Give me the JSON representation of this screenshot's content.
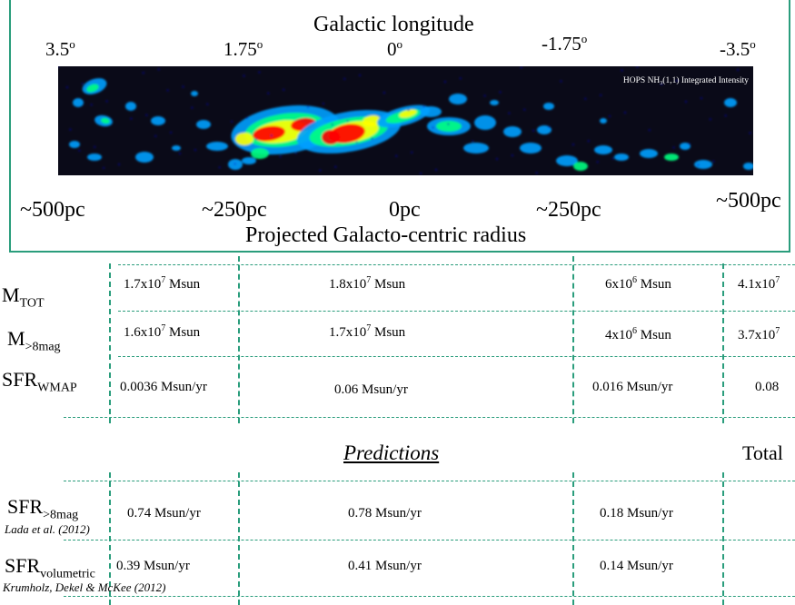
{
  "header": {
    "title": "Galactic longitude",
    "longitudes": [
      "3.5",
      "1.75",
      "0",
      "-1.75",
      "-3.5"
    ],
    "degree_mark": "o"
  },
  "map": {
    "label_prefix": "HOPS NH",
    "label_sub": "3",
    "label_suffix": "(1,1) Integrated Intensity",
    "background": "#0a0a18",
    "colors": [
      "#0000cc",
      "#00a0ff",
      "#00ff80",
      "#ffff00",
      "#ff0000"
    ]
  },
  "radius": {
    "labels": [
      "~500pc",
      "~250pc",
      "0pc",
      "~250pc",
      "~500pc"
    ],
    "title": "Projected Galacto-centric radius"
  },
  "table": {
    "rows": [
      {
        "label": "M",
        "label_sub": "TOT",
        "cells": [
          {
            "m": "1.7x10",
            "e": "7",
            "u": " Msun"
          },
          {
            "m": "1.8x10",
            "e": "7",
            "u": " Msun"
          },
          {
            "m": "6x10",
            "e": "6",
            "u": " Msun"
          },
          {
            "m": "4.1x10",
            "e": "7",
            "u": ""
          }
        ]
      },
      {
        "label": "M",
        "label_sub": ">8mag",
        "cells": [
          {
            "m": "1.6x10",
            "e": "7",
            "u": " Msun"
          },
          {
            "m": "1.7x10",
            "e": "7",
            "u": " Msun"
          },
          {
            "m": "4x10",
            "e": "6",
            "u": " Msun"
          },
          {
            "m": "3.7x10",
            "e": "7",
            "u": ""
          }
        ]
      },
      {
        "label": "SFR",
        "label_sub": "WMAP",
        "cells": [
          "0.0036 Msun/yr",
          "0.06 Msun/yr",
          "0.016 Msun/yr",
          "0.08"
        ]
      }
    ],
    "predictions_title": "Predictions",
    "total_label": "Total",
    "prediction_rows": [
      {
        "label": "SFR",
        "label_sub": ">8mag",
        "cite": "Lada et al. (2012)",
        "cells": [
          "0.74 Msun/yr",
          "0.78 Msun/yr",
          "0.18 Msun/yr"
        ]
      },
      {
        "label": "SFR",
        "label_sub": "volumetric",
        "cite": "Krumholz, Dekel & McKee (2012)",
        "cells": [
          "0.39 Msun/yr",
          "0.41 Msun/yr",
          "0.14 Msun/yr"
        ]
      }
    ]
  }
}
